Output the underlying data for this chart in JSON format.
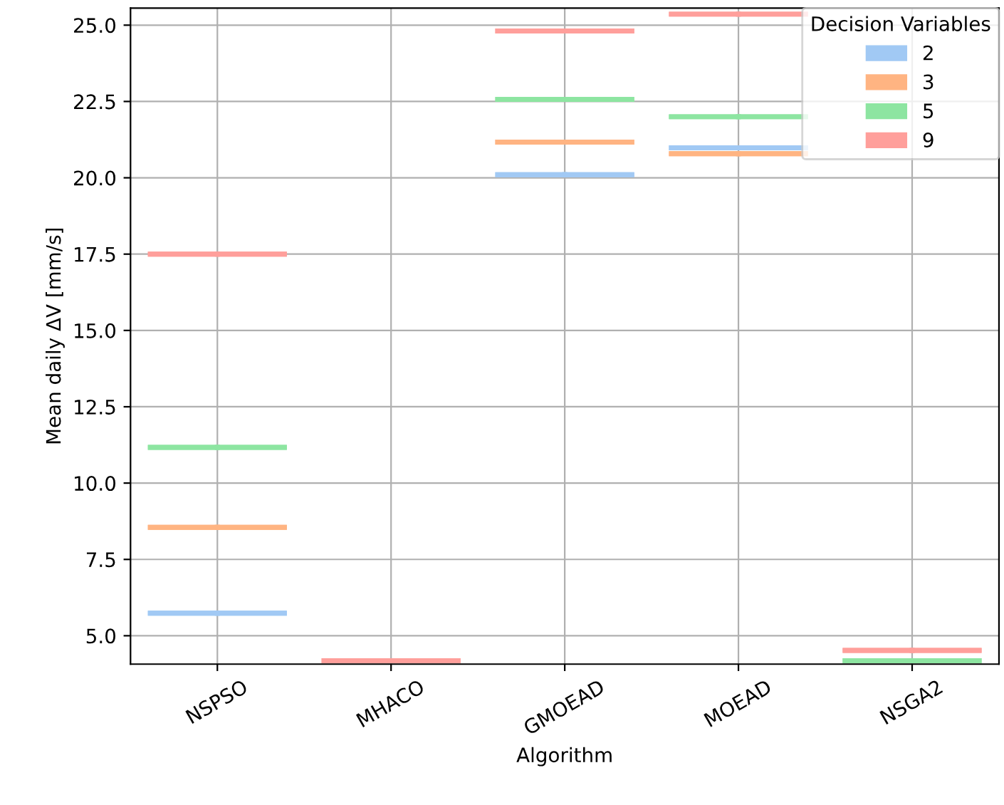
{
  "chart_data": {
    "type": "box",
    "xlabel": "Algorithm",
    "ylabel": "Mean daily ΔV [mm/s]",
    "legend_title": "Decision Variables",
    "categories": [
      "NSPSO",
      "MHACO",
      "GMOEAD",
      "MOEAD",
      "NSGA2"
    ],
    "series": [
      {
        "name": "2",
        "color": "#a1c9f4",
        "boxes": [
          {
            "low": 5.74,
            "q1": 5.74,
            "median": 5.74,
            "q3": 5.74,
            "high": 5.74
          },
          null,
          {
            "low": 20.1,
            "q1": 20.1,
            "median": 20.1,
            "q3": 20.1,
            "high": 20.1
          },
          {
            "low": 20.98,
            "q1": 20.98,
            "median": 20.98,
            "q3": 20.98,
            "high": 20.98
          },
          null
        ]
      },
      {
        "name": "3",
        "color": "#ffb482",
        "boxes": [
          {
            "low": 8.55,
            "q1": 8.55,
            "median": 8.55,
            "q3": 8.55,
            "high": 8.55
          },
          null,
          {
            "low": 21.17,
            "q1": 21.17,
            "median": 21.17,
            "q3": 21.17,
            "high": 21.17
          },
          {
            "low": 20.79,
            "q1": 20.79,
            "median": 20.79,
            "q3": 20.79,
            "high": 20.79
          },
          null
        ]
      },
      {
        "name": "5",
        "color": "#8de5a1",
        "boxes": [
          {
            "low": 11.17,
            "q1": 11.17,
            "median": 11.17,
            "q3": 11.17,
            "high": 11.17
          },
          null,
          {
            "low": 22.57,
            "q1": 22.57,
            "median": 22.57,
            "q3": 22.57,
            "high": 22.57
          },
          {
            "low": 22.0,
            "q1": 22.0,
            "median": 22.0,
            "q3": 22.0,
            "high": 22.0
          },
          {
            "low": 4.18,
            "q1": 4.18,
            "median": 4.18,
            "q3": 4.18,
            "high": 4.18
          }
        ]
      },
      {
        "name": "9",
        "color": "#ff9f9b",
        "boxes": [
          {
            "low": 17.5,
            "q1": 17.5,
            "median": 17.5,
            "q3": 17.5,
            "high": 17.5
          },
          {
            "low": 4.18,
            "q1": 4.18,
            "median": 4.18,
            "q3": 4.18,
            "high": 4.18
          },
          {
            "low": 24.81,
            "q1": 24.81,
            "median": 24.81,
            "q3": 24.81,
            "high": 24.81
          },
          {
            "low": 25.36,
            "q1": 25.36,
            "median": 25.36,
            "q3": 25.36,
            "high": 25.36
          },
          {
            "low": 4.52,
            "q1": 4.52,
            "median": 4.52,
            "q3": 4.52,
            "high": 4.52
          }
        ]
      }
    ],
    "ylim": [
      4.07,
      25.56
    ],
    "yticks": [
      {
        "value": 5,
        "label": "5.0"
      },
      7.5,
      {
        "value": 10,
        "label": "10.0"
      },
      12.5,
      {
        "value": 15,
        "label": "15.0"
      },
      17.5,
      {
        "value": 20,
        "label": "20.0"
      },
      22.5,
      {
        "value": 25,
        "label": "25.0"
      }
    ],
    "grid": true,
    "legend": "top right"
  }
}
